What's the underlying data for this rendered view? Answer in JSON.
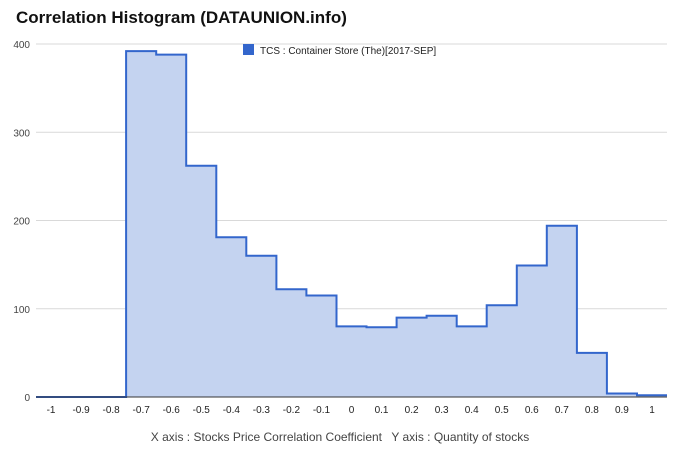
{
  "title": "Correlation Histogram (DATAUNION.info)",
  "xlabel": "X axis : Stocks Price Correlation Coefficient",
  "ylabel": "Y axis : Quantity of stocks",
  "colors": {
    "line": "#3366cc",
    "fill": "#c4d3f0",
    "grid": "#d9d9d9",
    "text": "#444444"
  },
  "chart_data": {
    "type": "area",
    "title": "Correlation Histogram (DATAUNION.info)",
    "legend": {
      "position": "top-center",
      "label": "TCS : Container Store (The)[2017-SEP]"
    },
    "grid": true,
    "xlim": [
      -1.05,
      1.05
    ],
    "ylim": [
      0,
      400
    ],
    "x_ticks": [
      "-1",
      "-0.9",
      "-0.8",
      "-0.7",
      "-0.6",
      "-0.5",
      "-0.4",
      "-0.3",
      "-0.2",
      "-0.1",
      "0",
      "0.1",
      "0.2",
      "0.3",
      "0.4",
      "0.5",
      "0.6",
      "0.7",
      "0.8",
      "0.9",
      "1"
    ],
    "y_ticks": [
      "0",
      "100",
      "200",
      "300",
      "400"
    ],
    "series": [
      {
        "name": "TCS : Container Store (The)[2017-SEP]",
        "step": true,
        "x": [
          -1,
          -0.9,
          -0.8,
          -0.7,
          -0.6,
          -0.5,
          -0.4,
          -0.3,
          -0.2,
          -0.1,
          0,
          0.1,
          0.2,
          0.3,
          0.4,
          0.5,
          0.6,
          0.7,
          0.8,
          0.9,
          1
        ],
        "values": [
          0,
          0,
          0,
          392,
          388,
          262,
          181,
          160,
          122,
          115,
          80,
          79,
          90,
          92,
          80,
          104,
          149,
          194,
          50,
          4,
          2
        ]
      }
    ]
  }
}
